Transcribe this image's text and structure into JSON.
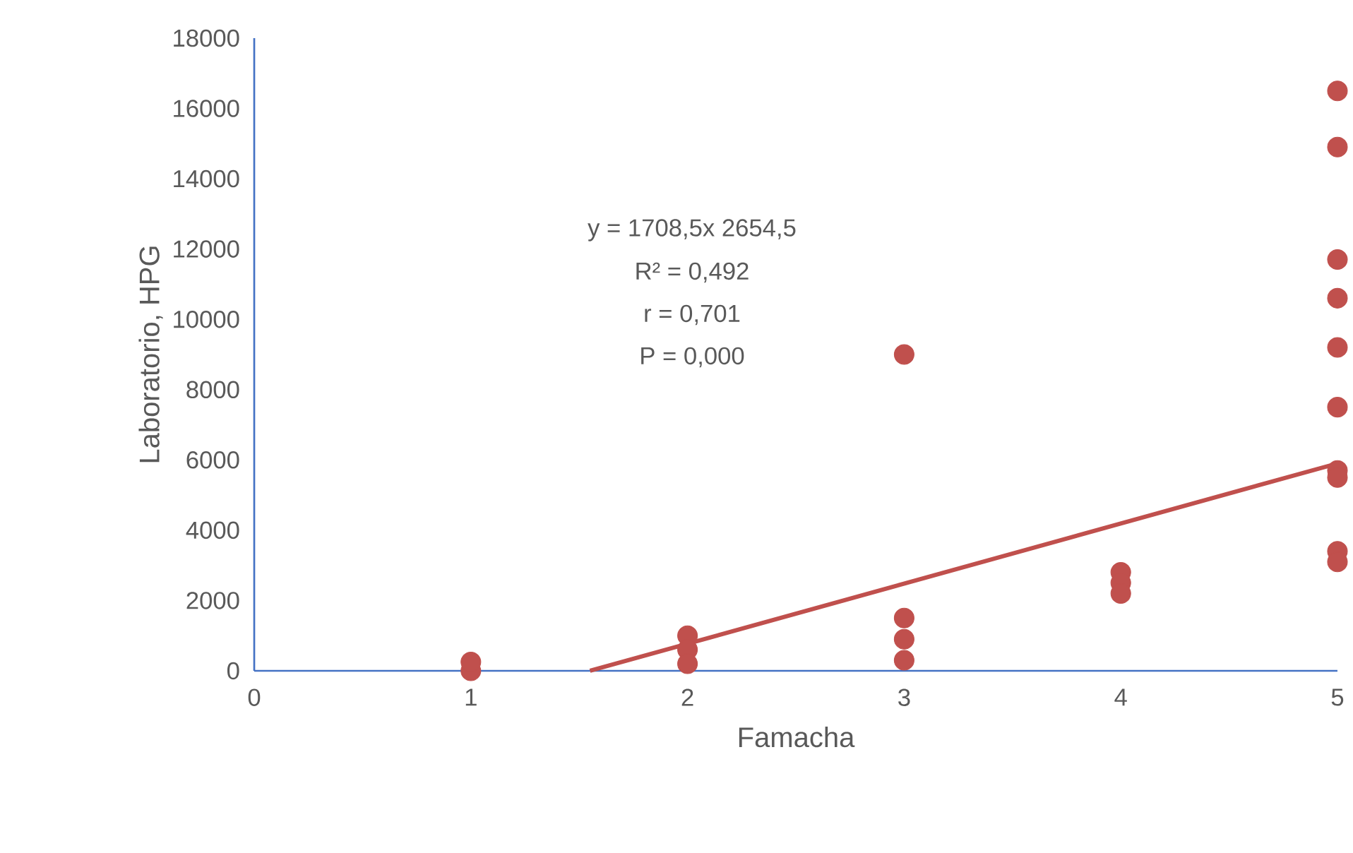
{
  "chart_data": {
    "type": "scatter",
    "xlabel": "Famacha",
    "ylabel": "Laboratorio, HPG",
    "x": [
      1,
      1,
      2,
      2,
      2,
      3,
      3,
      3,
      3,
      4,
      4,
      4,
      5,
      5,
      5,
      5,
      5,
      5,
      5,
      5,
      5,
      5
    ],
    "series": [
      {
        "marker": "circle",
        "color": "#c0504d",
        "values": [
          0,
          250,
          1000,
          600,
          200,
          9000,
          1500,
          900,
          300,
          2800,
          2500,
          2200,
          16500,
          14900,
          11700,
          10600,
          9200,
          7500,
          5700,
          5500,
          3400,
          3100
        ]
      },
      {
        "type": "line",
        "marker": "none",
        "color": "#c0504d",
        "x": [
          1.55,
          5
        ],
        "values": [
          0,
          5900
        ]
      }
    ],
    "xlim": [
      0,
      5
    ],
    "ylim": [
      0,
      18000
    ],
    "xticks": [
      0,
      1,
      2,
      3,
      4,
      5
    ],
    "yticks": [
      0,
      2000,
      4000,
      6000,
      8000,
      10000,
      12000,
      14000,
      16000,
      18000
    ],
    "annotations": [
      "y = 1708,5x  2654,5",
      "R² = 0,492",
      "r = 0,701",
      "P = 0,000"
    ]
  }
}
